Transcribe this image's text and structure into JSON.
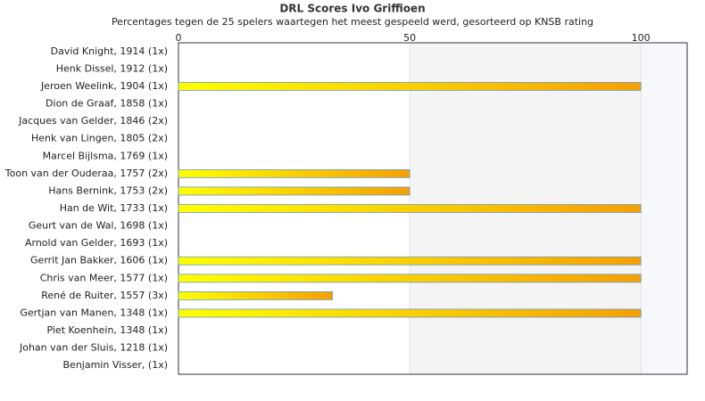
{
  "chart_data": {
    "type": "bar",
    "orientation": "horizontal",
    "title": "DRL Scores Ivo Griffioen",
    "subtitle": "Percentages tegen de 25 spelers waartegen het meest gespeeld werd, gesorteerd op KNSB rating",
    "categories": [
      "David Knight, 1914 (1x)",
      "Henk Dissel, 1912 (1x)",
      "Jeroen Weelink, 1904 (1x)",
      "Dion de Graaf, 1858 (1x)",
      "Jacques van Gelder, 1846 (2x)",
      "Henk van Lingen, 1805 (2x)",
      "Marcel Bijlsma, 1769 (1x)",
      "Toon van der Ouderaa, 1757 (2x)",
      "Hans Bernink, 1753 (2x)",
      "Han de Wit, 1733 (1x)",
      "Geurt van de Wal, 1698 (1x)",
      "Arnold van Gelder, 1693 (1x)",
      "Gerrit Jan Bakker, 1606 (1x)",
      "Chris van Meer, 1577 (1x)",
      "René de Ruiter, 1557 (3x)",
      "Gertjan van Manen, 1348 (1x)",
      "Piet Koenhein, 1348 (1x)",
      "Johan van der Sluis, 1218 (1x)",
      "Benjamin Visser,  (1x)"
    ],
    "values": [
      0,
      0,
      100,
      0,
      0,
      0,
      0,
      50,
      50,
      100,
      0,
      0,
      100,
      100,
      33.3,
      100,
      0,
      0,
      0
    ],
    "color": [
      "#ffff00",
      "#f5a000"
    ],
    "xlim": [
      0,
      110
    ],
    "xticks": [
      0,
      50,
      100
    ]
  }
}
